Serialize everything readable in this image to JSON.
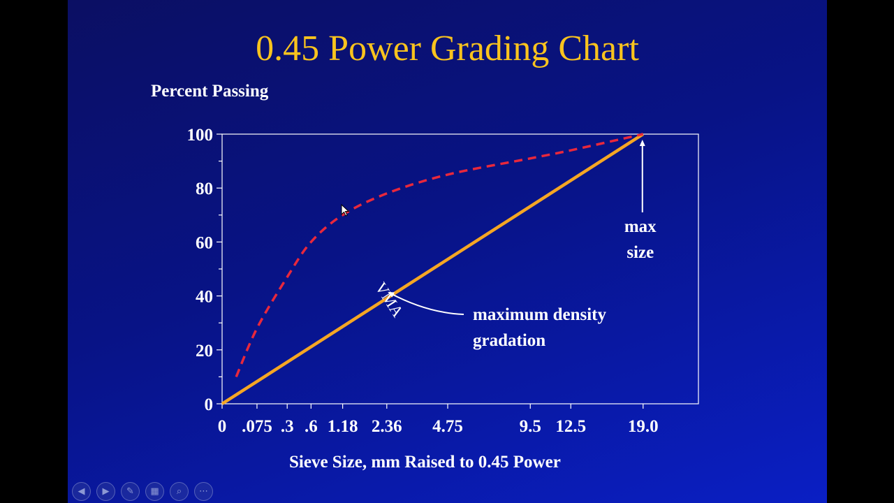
{
  "slide": {
    "title": "0.45 Power Grading Chart"
  },
  "chart_data": {
    "type": "line",
    "ylabel": "Percent Passing",
    "xlabel": "Sieve Size, mm Raised to 0.45 Power",
    "ylim": [
      0,
      100
    ],
    "y_ticks": [
      0,
      20,
      40,
      60,
      80,
      100
    ],
    "x_tick_labels": [
      "0",
      ".075",
      ".3",
      ".6",
      "1.18",
      "2.36",
      "4.75",
      "9.5",
      "12.5",
      "19.0"
    ],
    "x_tick_sizes_mm": [
      0,
      0.075,
      0.3,
      0.6,
      1.18,
      2.36,
      4.75,
      9.5,
      12.5,
      19.0
    ],
    "x_max_mm": 25,
    "series": [
      {
        "name": "maximum density gradation",
        "style": "solid",
        "color": "#f5a623",
        "points": [
          [
            0,
            0
          ],
          [
            19.0,
            100
          ]
        ]
      },
      {
        "name": "",
        "style": "dashed",
        "color": "#e8283c",
        "points": [
          [
            0.01,
            10
          ],
          [
            0.075,
            28
          ],
          [
            0.3,
            47
          ],
          [
            0.6,
            60
          ],
          [
            1.18,
            70
          ],
          [
            2.36,
            78
          ],
          [
            4.75,
            85
          ],
          [
            9.5,
            91
          ],
          [
            12.5,
            94
          ],
          [
            19.0,
            100
          ]
        ]
      }
    ],
    "annotations": {
      "vma": "VMA",
      "max_density_line1": "maximum density",
      "max_density_line2": "gradation",
      "max_size_line1": "max",
      "max_size_line2": "size"
    }
  },
  "controls": [
    {
      "name": "previous-slide-button",
      "icon": "chevron-left-icon",
      "glyph": "◀"
    },
    {
      "name": "next-slide-button",
      "icon": "chevron-right-icon",
      "glyph": "▶"
    },
    {
      "name": "pen-button",
      "icon": "pen-icon",
      "glyph": "✎"
    },
    {
      "name": "see-all-slides-button",
      "icon": "slides-grid-icon",
      "glyph": "▦"
    },
    {
      "name": "zoom-button",
      "icon": "magnifier-icon",
      "glyph": "⌕"
    },
    {
      "name": "more-options-button",
      "icon": "ellipsis-icon",
      "glyph": "⋯"
    }
  ]
}
